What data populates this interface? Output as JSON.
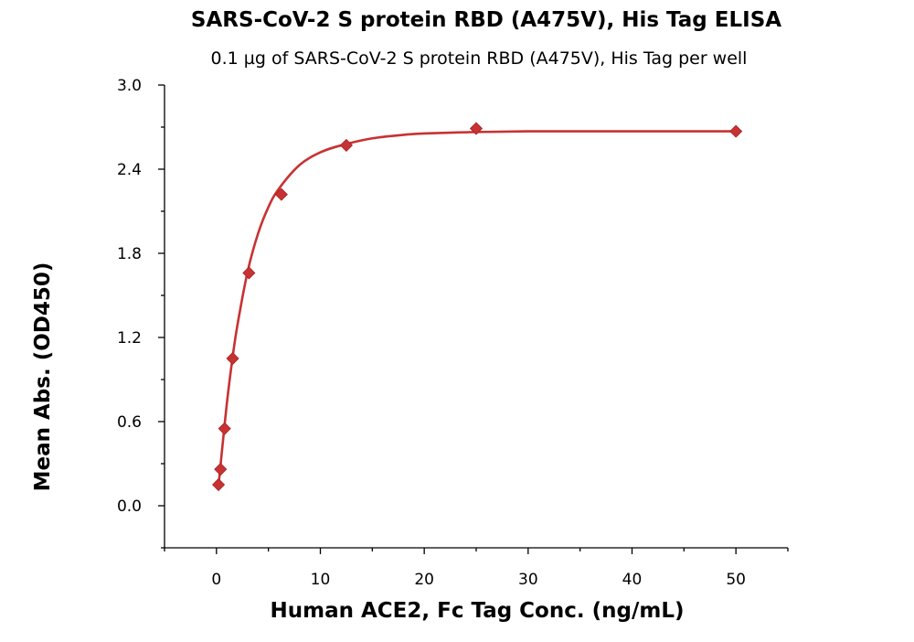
{
  "chart_data": {
    "type": "scatter",
    "title": "SARS-CoV-2 S protein RBD (A475V), His Tag ELISA",
    "subtitle": "0.1 µg of SARS-CoV-2 S protein RBD (A475V), His Tag per well",
    "xlabel": "Human ACE2, Fc Tag Conc. (ng/mL)",
    "ylabel": "Mean Abs. (OD450)",
    "xlim": [
      -5,
      55
    ],
    "ylim": [
      -0.3,
      3.0
    ],
    "xticks": [
      0,
      10,
      20,
      30,
      40,
      50
    ],
    "yticks": [
      0.0,
      0.6,
      1.2,
      1.8,
      2.4,
      3.0
    ],
    "xtick_labels": [
      "0",
      "10",
      "20",
      "30",
      "40",
      "50"
    ],
    "ytick_labels": [
      "0.0",
      "0.6",
      "1.2",
      "1.8",
      "2.4",
      "3.0"
    ],
    "grid": false,
    "colors": {
      "marker": "#c83232",
      "curve": "#c83232"
    },
    "series": [
      {
        "x": [
          0.195,
          0.39,
          0.78,
          1.56,
          3.125,
          6.25,
          12.5,
          25,
          50
        ],
        "y": [
          0.15,
          0.26,
          0.55,
          1.05,
          1.66,
          2.22,
          2.57,
          2.69,
          2.67
        ],
        "marker": "diamond",
        "fit": {
          "x": [
            0.195,
            0.5,
            1,
            1.5,
            2,
            3,
            4,
            5,
            6,
            8,
            10,
            12,
            15,
            18,
            20,
            25,
            30,
            35,
            40,
            45,
            50
          ],
          "y": [
            0.14,
            0.37,
            0.73,
            1.03,
            1.28,
            1.67,
            1.94,
            2.13,
            2.26,
            2.43,
            2.52,
            2.57,
            2.62,
            2.645,
            2.655,
            2.665,
            2.67,
            2.67,
            2.67,
            2.67,
            2.67
          ]
        }
      }
    ]
  }
}
